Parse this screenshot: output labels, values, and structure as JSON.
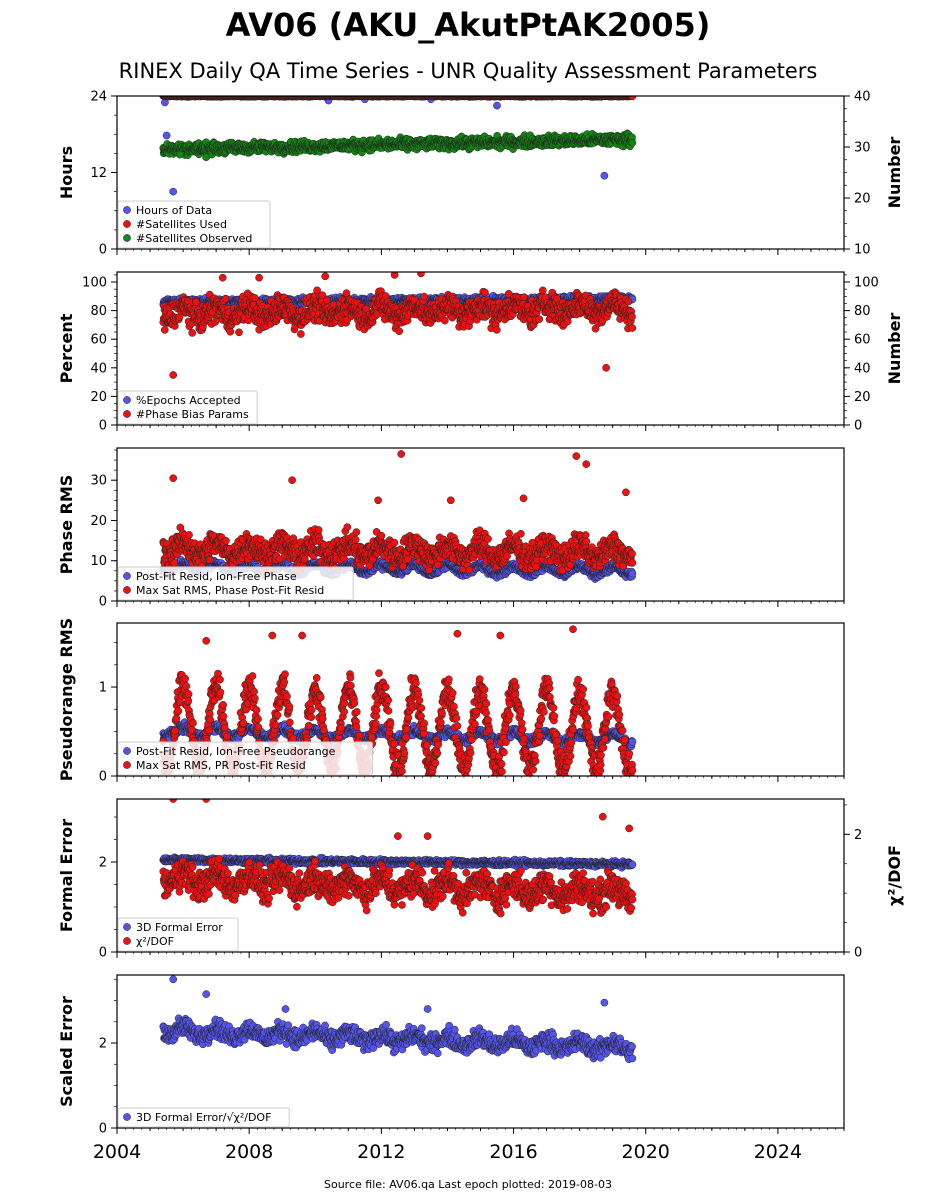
{
  "title": "AV06 (AKU_AkutPtAK2005)",
  "subtitle": "RINEX Daily QA Time Series - UNR Quality Assessment Parameters",
  "footer": "Source file: AV06.qa Last epoch plotted: 2019-08-03",
  "colors": {
    "blue": "#5555ee",
    "red": "#ee1111",
    "green": "#118811",
    "edge": "#222222"
  },
  "chart_data": [
    {
      "type": "scatter",
      "ylabel": "Hours",
      "ylabel_right": "Number",
      "ylim": [
        0,
        24
      ],
      "yticks": [
        0,
        12,
        24
      ],
      "ylim_right": [
        10,
        40
      ],
      "yticks_right": [
        10,
        20,
        30,
        40
      ],
      "xlim": [
        2004,
        2026
      ],
      "xticks": [
        2004,
        2008,
        2012,
        2016,
        2020,
        2024
      ],
      "date_range": [
        2005.4,
        2019.6
      ],
      "legend": "lower-left",
      "series": [
        {
          "name": "Hours of Data",
          "color": "blue",
          "axis": "left",
          "base": [
            24,
            24
          ],
          "amp": 0,
          "noise": 0.1,
          "outliers": [
            [
              2005.45,
              23
            ],
            [
              2005.5,
              17.8
            ],
            [
              2005.7,
              9
            ],
            [
              2010.4,
              23.3
            ],
            [
              2011.5,
              23.5
            ],
            [
              2013.5,
              23.5
            ],
            [
              2015.5,
              22.5
            ],
            [
              2018.75,
              11.5
            ]
          ]
        },
        {
          "name": "#Satellites Used",
          "color": "red",
          "axis": "left",
          "base": [
            24,
            24
          ],
          "amp": 0,
          "noise": 0.05,
          "outliers": [
            [
              2009.7,
              16
            ]
          ]
        },
        {
          "name": "#Satellites Observed",
          "color": "green",
          "axis": "right",
          "base": [
            29.5,
            31.5
          ],
          "amp": 0,
          "noise": 0.9,
          "outliers": [
            [
              2005.9,
              28.5
            ],
            [
              2006.7,
              28
            ]
          ]
        }
      ]
    },
    {
      "type": "scatter",
      "ylabel": "Percent",
      "ylabel_right": "Number",
      "ylim": [
        0,
        107
      ],
      "yticks": [
        0,
        20,
        40,
        60,
        80,
        100
      ],
      "ylim_right": [
        0,
        107
      ],
      "yticks_right": [
        0,
        20,
        40,
        60,
        80,
        100
      ],
      "xlim": [
        2004,
        2026
      ],
      "xticks": [
        2004,
        2008,
        2012,
        2016,
        2020,
        2024
      ],
      "date_range": [
        2005.4,
        2019.6
      ],
      "legend": "lower-left",
      "series": [
        {
          "name": "%Epochs Accepted",
          "color": "blue",
          "axis": "left",
          "base": [
            86,
            88
          ],
          "amp": 0,
          "noise": 2,
          "outliers": []
        },
        {
          "name": "#Phase Bias Params",
          "color": "red",
          "axis": "right",
          "base": [
            78,
            82
          ],
          "amp": 4,
          "noise": 8,
          "outliers": [
            [
              2005.7,
              35
            ],
            [
              2018.8,
              40
            ],
            [
              2010.3,
              104
            ],
            [
              2012.4,
              105
            ],
            [
              2013.2,
              106
            ],
            [
              2007.2,
              103
            ],
            [
              2008.3,
              103
            ]
          ]
        }
      ]
    },
    {
      "type": "scatter",
      "ylabel": "Phase RMS",
      "ylim": [
        0,
        38
      ],
      "yticks": [
        0,
        10,
        20,
        30
      ],
      "xlim": [
        2004,
        2026
      ],
      "xticks": [
        2004,
        2008,
        2012,
        2016,
        2020,
        2024
      ],
      "date_range": [
        2005.4,
        2019.6
      ],
      "legend": "lower-left",
      "series": [
        {
          "name": "Post-Fit Resid, Ion-Free Phase",
          "color": "blue",
          "axis": "left",
          "base": [
            8.5,
            7.5
          ],
          "amp": 1,
          "noise": 0.8,
          "outliers": []
        },
        {
          "name": "Max Sat RMS, Phase Post-Fit Resid",
          "color": "red",
          "axis": "left",
          "base": [
            13,
            12
          ],
          "amp": 1.5,
          "noise": 2.8,
          "outliers": [
            [
              2005.7,
              30.5
            ],
            [
              2012.6,
              36.5
            ],
            [
              2017.9,
              36
            ],
            [
              2018.2,
              34
            ],
            [
              2019.4,
              27
            ],
            [
              2016.3,
              25.5
            ],
            [
              2009.3,
              30
            ],
            [
              2014.1,
              25
            ],
            [
              2011.9,
              25
            ]
          ]
        }
      ]
    },
    {
      "type": "scatter",
      "ylabel": "Pseudorange RMS",
      "ylim": [
        0,
        1.72
      ],
      "yticks": [
        0,
        1
      ],
      "xlim": [
        2004,
        2026
      ],
      "xticks": [
        2004,
        2008,
        2012,
        2016,
        2020,
        2024
      ],
      "date_range": [
        2005.4,
        2019.6
      ],
      "legend": "lower-left",
      "series": [
        {
          "name": "Post-Fit Resid, Ion-Free Pseudorange",
          "color": "blue",
          "axis": "left",
          "base": [
            0.5,
            0.42
          ],
          "amp": 0.05,
          "noise": 0.04,
          "outliers": []
        },
        {
          "name": "Max Sat RMS, PR Post-Fit Resid",
          "color": "red",
          "axis": "left",
          "base": [
            0.55,
            0.5
          ],
          "amp": 0.45,
          "noise": 0.15,
          "outliers": [
            [
              2017.8,
              1.65
            ],
            [
              2015.6,
              1.58
            ],
            [
              2014.3,
              1.6
            ],
            [
              2008.7,
              1.58
            ],
            [
              2009.6,
              1.58
            ],
            [
              2006.7,
              1.52
            ]
          ]
        }
      ]
    },
    {
      "type": "scatter",
      "ylabel": "Formal Error",
      "ylabel_right": "χ²/DOF",
      "ylim": [
        0,
        3.4
      ],
      "yticks": [
        0,
        2
      ],
      "ylim_right": [
        0,
        2.6
      ],
      "yticks_right": [
        0,
        2
      ],
      "xlim": [
        2004,
        2026
      ],
      "xticks": [
        2004,
        2008,
        2012,
        2016,
        2020,
        2024
      ],
      "date_range": [
        2005.4,
        2019.6
      ],
      "legend": "lower-left",
      "series": [
        {
          "name": "3D Formal Error",
          "color": "blue",
          "axis": "left",
          "base": [
            2.05,
            1.95
          ],
          "amp": 0,
          "noise": 0.05,
          "outliers": []
        },
        {
          "name": "χ²/DOF",
          "color": "red",
          "axis": "right",
          "base": [
            1.25,
            1.0
          ],
          "amp": 0.12,
          "noise": 0.22,
          "outliers": [
            [
              2005.7,
              2.6
            ],
            [
              2006.7,
              2.6
            ],
            [
              2018.7,
              2.3
            ],
            [
              2012.5,
              1.97
            ],
            [
              2013.4,
              1.97
            ],
            [
              2019.5,
              2.1
            ]
          ]
        }
      ]
    },
    {
      "type": "scatter",
      "ylabel": "Scaled Error",
      "ylim": [
        0,
        3.6
      ],
      "yticks": [
        0,
        2
      ],
      "xlim": [
        2004,
        2026
      ],
      "xticks": [
        2004,
        2008,
        2012,
        2016,
        2020,
        2024
      ],
      "date_range": [
        2005.4,
        2019.6
      ],
      "legend": "lower-left",
      "series": [
        {
          "name": "3D Formal Error/√χ²/DOF",
          "color": "blue",
          "axis": "left",
          "base": [
            2.3,
            1.9
          ],
          "amp": 0.1,
          "noise": 0.18,
          "outliers": [
            [
              2005.7,
              3.5
            ],
            [
              2006.7,
              3.15
            ],
            [
              2018.75,
              2.95
            ],
            [
              2013.4,
              2.8
            ],
            [
              2009.1,
              2.8
            ]
          ]
        }
      ]
    }
  ]
}
